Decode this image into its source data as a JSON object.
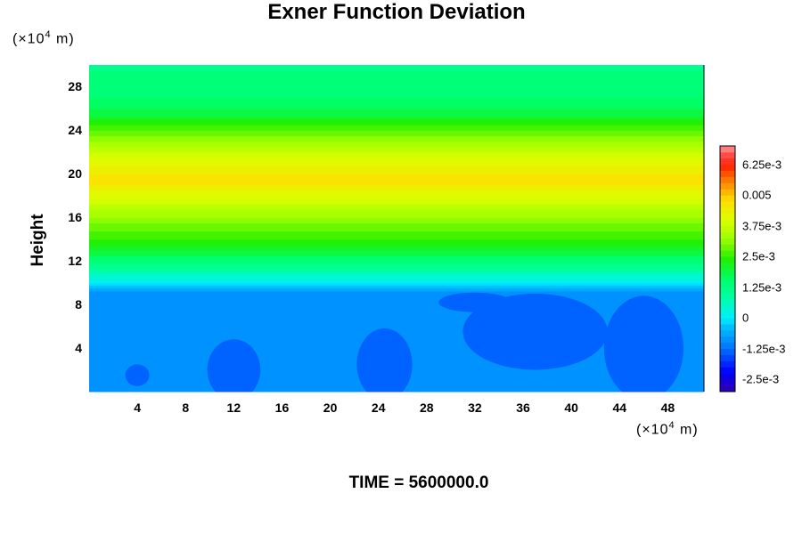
{
  "chart_data": {
    "type": "heatmap",
    "title": "Exner Function Deviation",
    "ylabel": "Height",
    "y_unit_label": {
      "pre": "(×10",
      "exp": "4",
      "post": " m)"
    },
    "x_unit_label": {
      "pre": "(×10",
      "exp": "4",
      "post": " m)"
    },
    "time_label": "TIME = 5600000.0",
    "xlim": [
      0,
      51
    ],
    "ylim": [
      0,
      30
    ],
    "x_ticks": [
      "4",
      "8",
      "12",
      "16",
      "20",
      "24",
      "28",
      "32",
      "36",
      "40",
      "44",
      "48"
    ],
    "x_tick_values": [
      4,
      8,
      12,
      16,
      20,
      24,
      28,
      32,
      36,
      40,
      44,
      48
    ],
    "y_ticks": [
      "4",
      "8",
      "12",
      "16",
      "20",
      "24",
      "28"
    ],
    "y_tick_values": [
      4,
      8,
      12,
      16,
      20,
      24,
      28
    ],
    "vertical_profile": [
      {
        "height": 0,
        "value": -0.0009
      },
      {
        "height": 9,
        "value": -0.0009
      },
      {
        "height": 9.6,
        "value": -0.0004
      },
      {
        "height": 10.2,
        "value": 0.0001
      },
      {
        "height": 11,
        "value": 0.0008
      },
      {
        "height": 12,
        "value": 0.0014
      },
      {
        "height": 13,
        "value": 0.002
      },
      {
        "height": 14,
        "value": 0.0025
      },
      {
        "height": 15.5,
        "value": 0.003
      },
      {
        "height": 17,
        "value": 0.0036
      },
      {
        "height": 18.5,
        "value": 0.0043
      },
      {
        "height": 19.5,
        "value": 0.0047
      },
      {
        "height": 20.5,
        "value": 0.0043
      },
      {
        "height": 21.5,
        "value": 0.004
      },
      {
        "height": 23,
        "value": 0.0032
      },
      {
        "height": 24.5,
        "value": 0.0025
      },
      {
        "height": 25.5,
        "value": 0.0019
      },
      {
        "height": 27,
        "value": 0.0015
      },
      {
        "height": 30,
        "value": 0.0012
      }
    ],
    "anomalies": [
      {
        "x": 4,
        "y": 1.5,
        "rx": 1,
        "ry": 1,
        "value": -0.0013
      },
      {
        "x": 12,
        "y": 2,
        "rx": 2.2,
        "ry": 2.8,
        "value": -0.0013
      },
      {
        "x": 24.5,
        "y": 2.5,
        "rx": 2.3,
        "ry": 3.3,
        "value": -0.0013
      },
      {
        "x": 37,
        "y": 5.5,
        "rx": 6,
        "ry": 3.5,
        "value": -0.0013
      },
      {
        "x": 46,
        "y": 4,
        "rx": 3.3,
        "ry": 4.8,
        "value": -0.0013
      },
      {
        "x": 32,
        "y": 8.2,
        "rx": 3,
        "ry": 0.9,
        "value": -0.0013
      }
    ],
    "colorbar": {
      "min": -0.003,
      "max": 0.007,
      "levels": 40,
      "tick_labels": [
        "6.25e-3",
        "0.005",
        "3.75e-3",
        "2.5e-3",
        "1.25e-3",
        "0",
        "-1.25e-3",
        "-2.5e-3"
      ],
      "tick_values": [
        0.00625,
        0.005,
        0.00375,
        0.0025,
        0.00125,
        0,
        -0.00125,
        -0.0025
      ],
      "stops": [
        {
          "value": -0.003,
          "color": "#3300aa"
        },
        {
          "value": -0.0022,
          "color": "#0000ff"
        },
        {
          "value": -0.0012,
          "color": "#0077ff"
        },
        {
          "value": -0.0004,
          "color": "#00bbff"
        },
        {
          "value": 0.0,
          "color": "#00eeff"
        },
        {
          "value": 0.0008,
          "color": "#00ffaa"
        },
        {
          "value": 0.0016,
          "color": "#00ff66"
        },
        {
          "value": 0.0024,
          "color": "#22ee00"
        },
        {
          "value": 0.0032,
          "color": "#99ff00"
        },
        {
          "value": 0.004,
          "color": "#ddff00"
        },
        {
          "value": 0.0048,
          "color": "#ffdd00"
        },
        {
          "value": 0.0055,
          "color": "#ff8800"
        },
        {
          "value": 0.0062,
          "color": "#ff2200"
        },
        {
          "value": 0.0067,
          "color": "#ff5555"
        },
        {
          "value": 0.007,
          "color": "#ff9999"
        }
      ]
    }
  }
}
